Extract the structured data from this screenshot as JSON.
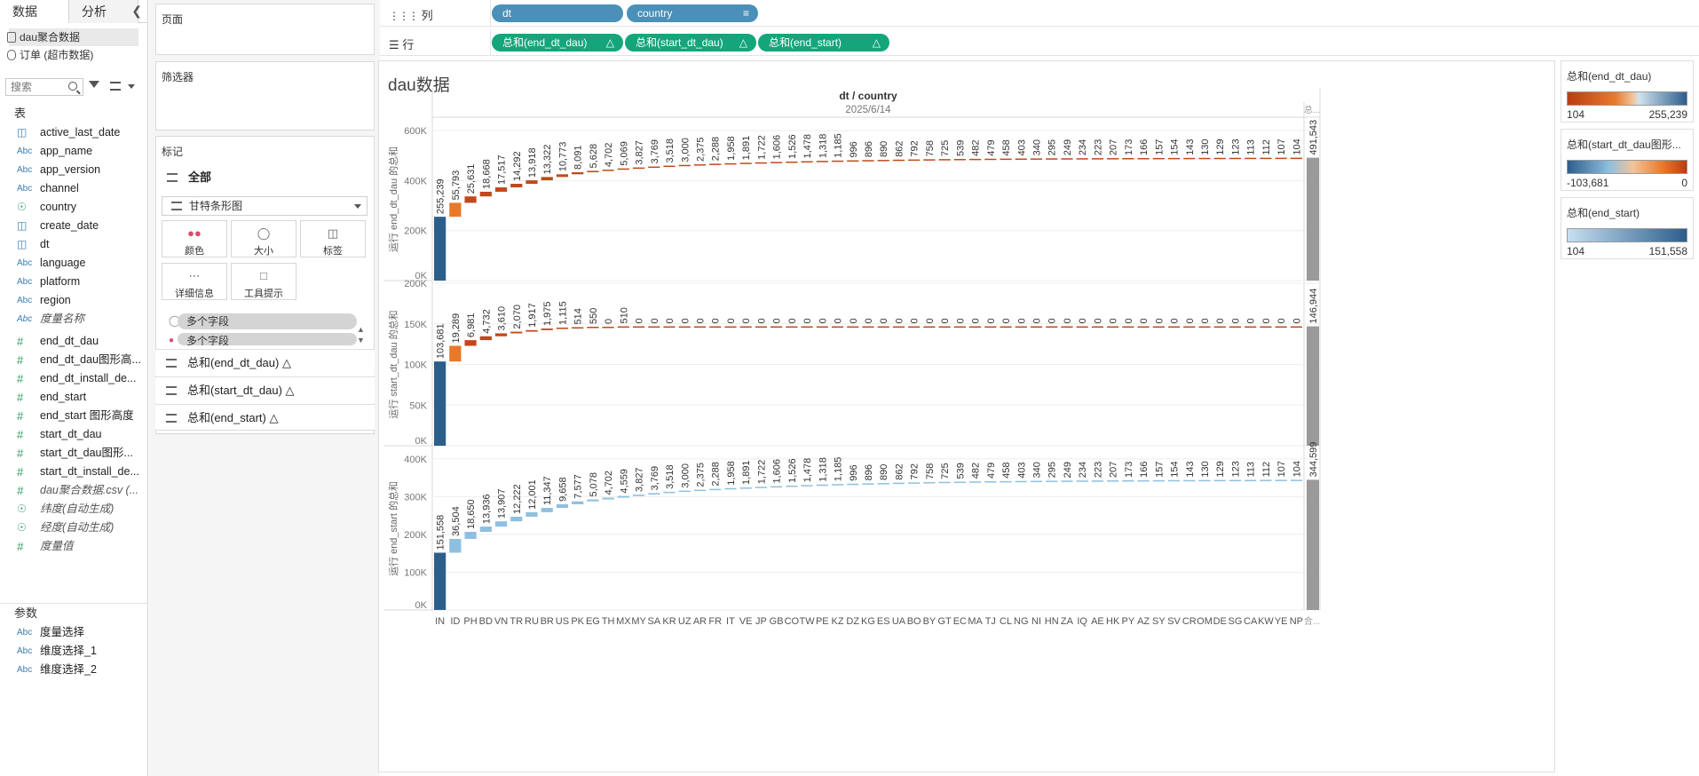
{
  "datapane": {
    "tabs": [
      "数据",
      "分析"
    ],
    "datasources": [
      "dau聚合数据",
      "订单 (超市数据)"
    ],
    "search_placeholder": "搜索",
    "tables_heading": "表",
    "fields": [
      {
        "name": "active_last_date",
        "type": "date"
      },
      {
        "name": "app_name",
        "type": "abc"
      },
      {
        "name": "app_version",
        "type": "abc"
      },
      {
        "name": "channel",
        "type": "abc"
      },
      {
        "name": "country",
        "type": "globe"
      },
      {
        "name": "create_date",
        "type": "date"
      },
      {
        "name": "dt",
        "type": "date"
      },
      {
        "name": "language",
        "type": "abc"
      },
      {
        "name": "platform",
        "type": "abc"
      },
      {
        "name": "region",
        "type": "abc"
      },
      {
        "name": "度量名称",
        "type": "abc",
        "italic": true
      },
      {
        "name": "end_dt_dau",
        "type": "num"
      },
      {
        "name": "end_dt_dau图形高...",
        "type": "num"
      },
      {
        "name": "end_dt_install_de...",
        "type": "num"
      },
      {
        "name": "end_start",
        "type": "num"
      },
      {
        "name": "end_start 图形高度",
        "type": "num"
      },
      {
        "name": "start_dt_dau",
        "type": "num"
      },
      {
        "name": "start_dt_dau图形...",
        "type": "num"
      },
      {
        "name": "start_dt_install_de...",
        "type": "num"
      },
      {
        "name": "dau聚合数据.csv (...",
        "type": "num",
        "italic": true
      },
      {
        "name": "纬度(自动生成)",
        "type": "globe",
        "italic": true
      },
      {
        "name": "经度(自动生成)",
        "type": "globe",
        "italic": true
      },
      {
        "name": "度量值",
        "type": "num",
        "italic": true
      }
    ],
    "params_heading": "参数",
    "params": [
      "度量选择",
      "维度选择_1",
      "维度选择_2"
    ]
  },
  "cards": {
    "pages": "页面",
    "filters": "筛选器",
    "marks": "标记",
    "marks_all": "全部",
    "mark_type": "甘特条形图",
    "mark_buttons": [
      "颜色",
      "大小",
      "标签",
      "详细信息",
      "工具提示"
    ],
    "multi_fields": [
      "多个字段",
      "多个字段"
    ],
    "measure_pills": [
      "总和(end_dt_dau) △",
      "总和(start_dt_dau) △",
      "总和(end_start) △"
    ]
  },
  "shelves": {
    "columns_label": "列",
    "rows_label": "行",
    "columns": [
      "dt",
      "country"
    ],
    "rows": [
      "总和(end_dt_dau)",
      "总和(start_dt_dau)",
      "总和(end_start)"
    ],
    "delta": "△"
  },
  "view": {
    "title": "dau数据",
    "header_top": "dt / country",
    "date_header": "2025/6/14",
    "total_header": "总..."
  },
  "legends": [
    {
      "title": "总和(end_dt_dau)",
      "min": "104",
      "max": "255,239"
    },
    {
      "title": "总和(start_dt_dau图形...",
      "min": "-103,681",
      "max": "0"
    },
    {
      "title": "总和(end_start)",
      "min": "104",
      "max": "151,558"
    }
  ],
  "colors": {
    "pill_blue": "#4a90b8",
    "pill_green": "#14a67a",
    "bar_dark_blue": "#2c5e8c",
    "bar_orange_1": "#e8782a",
    "bar_orange_2": "#c0491b",
    "bar_light_blue": "#8fbfe0",
    "total_gray": "#9a9a9a"
  },
  "chart_data": {
    "type": "bar",
    "subtype": "waterfall-gantt",
    "categories": [
      "IN",
      "ID",
      "PH",
      "BD",
      "VN",
      "TR",
      "RU",
      "BR",
      "US",
      "PK",
      "EG",
      "TH",
      "MX",
      "MY",
      "SA",
      "KR",
      "UZ",
      "AR",
      "FR",
      "IT",
      "VE",
      "JP",
      "GB",
      "CO",
      "TW",
      "PE",
      "KZ",
      "DZ",
      "KG",
      "ES",
      "UA",
      "BO",
      "BY",
      "GT",
      "EC",
      "MA",
      "TJ",
      "CL",
      "NG",
      "NI",
      "HN",
      "ZA",
      "IQ",
      "AE",
      "HK",
      "PY",
      "AZ",
      "SY",
      "SV",
      "CR",
      "OM",
      "DE",
      "SG",
      "CA",
      "KW",
      "YE",
      "NP"
    ],
    "total_label": "合...",
    "panels": [
      {
        "ylabel": "运行 end_dt_dau 的总和",
        "ylim": [
          0,
          650000
        ],
        "ticks": [
          "0K",
          "200K",
          "400K",
          "600K"
        ],
        "tick_values": [
          0,
          200000,
          400000,
          600000
        ],
        "values": [
          255239,
          55793,
          25631,
          18668,
          17517,
          14292,
          13918,
          13322,
          10773,
          8091,
          5628,
          4702,
          5069,
          3827,
          3769,
          3518,
          3000,
          2375,
          2288,
          1958,
          1891,
          1722,
          1606,
          1526,
          1478,
          1318,
          1185,
          996,
          896,
          890,
          862,
          792,
          758,
          725,
          539,
          482,
          479,
          458,
          403,
          340,
          295,
          249,
          234,
          223,
          207,
          173,
          166,
          157,
          154,
          143,
          130,
          129,
          123,
          113,
          112,
          107,
          104
        ],
        "labels": [
          "255,239",
          "55,793",
          "25,631",
          "18,668",
          "17,517",
          "14,292",
          "13,918",
          "13,322",
          "10,773",
          "8,091",
          "5,628",
          "4,702",
          "5,069",
          "3,827",
          "3,769",
          "3,518",
          "3,000",
          "2,375",
          "2,288",
          "1,958",
          "1,891",
          "1,722",
          "1,606",
          "1,526",
          "1,478",
          "1,318",
          "1,185",
          "996",
          "896",
          "890",
          "862",
          "792",
          "758",
          "725",
          "539",
          "482",
          "479",
          "458",
          "403",
          "340",
          "295",
          "249",
          "234",
          "223",
          "207",
          "173",
          "166",
          "157",
          "154",
          "143",
          "130",
          "129",
          "123",
          "113",
          "112",
          "107",
          "104"
        ],
        "total": 491543,
        "total_label": "491,543",
        "palette": "orange"
      },
      {
        "ylabel": "运行 start_dt_dau 的总和",
        "ylim": [
          0,
          200000
        ],
        "ticks": [
          "0K",
          "50K",
          "100K",
          "150K",
          "200K"
        ],
        "tick_values": [
          0,
          50000,
          100000,
          150000,
          200000
        ],
        "values": [
          103681,
          19289,
          6981,
          4732,
          3610,
          2070,
          1917,
          1975,
          1115,
          514,
          550,
          0,
          510,
          0,
          0,
          0,
          0,
          0,
          0,
          0,
          0,
          0,
          0,
          0,
          0,
          0,
          0,
          0,
          0,
          0,
          0,
          0,
          0,
          0,
          0,
          0,
          0,
          0,
          0,
          0,
          0,
          0,
          0,
          0,
          0,
          0,
          0,
          0,
          0,
          0,
          0,
          0,
          0,
          0,
          0,
          0,
          0
        ],
        "labels": [
          "103,681",
          "19,289",
          "6,981",
          "4,732",
          "3,610",
          "2,070",
          "1,917",
          "1,975",
          "1,115",
          "514",
          "550",
          "0",
          "510",
          "0",
          "0",
          "0",
          "0",
          "0",
          "0",
          "0",
          "0",
          "0",
          "0",
          "0",
          "0",
          "0",
          "0",
          "0",
          "0",
          "0",
          "0",
          "0",
          "0",
          "0",
          "0",
          "0",
          "0",
          "0",
          "0",
          "0",
          "0",
          "0",
          "0",
          "0",
          "0",
          "0",
          "0",
          "0",
          "0",
          "0",
          "0",
          "0",
          "0",
          "0",
          "0",
          "0",
          "0"
        ],
        "total": 146944,
        "total_label": "146,944",
        "palette": "orange"
      },
      {
        "ylabel": "运行 end_start 的总和",
        "ylim": [
          0,
          430000
        ],
        "ticks": [
          "0K",
          "100K",
          "200K",
          "300K",
          "400K"
        ],
        "tick_values": [
          0,
          100000,
          200000,
          300000,
          400000
        ],
        "values": [
          151558,
          36504,
          18650,
          13936,
          13907,
          12222,
          12001,
          11347,
          9658,
          7577,
          5078,
          4702,
          4559,
          3827,
          3769,
          3518,
          3000,
          2375,
          2288,
          1958,
          1891,
          1722,
          1606,
          1526,
          1478,
          1318,
          1185,
          996,
          896,
          890,
          862,
          792,
          758,
          725,
          539,
          482,
          479,
          458,
          403,
          340,
          295,
          249,
          234,
          223,
          207,
          173,
          166,
          157,
          154,
          143,
          130,
          129,
          123,
          113,
          112,
          107,
          104
        ],
        "labels": [
          "151,558",
          "36,504",
          "18,650",
          "13,936",
          "13,907",
          "12,222",
          "12,001",
          "11,347",
          "9,658",
          "7,577",
          "5,078",
          "4,702",
          "4,559",
          "3,827",
          "3,769",
          "3,518",
          "3,000",
          "2,375",
          "2,288",
          "1,958",
          "1,891",
          "1,722",
          "1,606",
          "1,526",
          "1,478",
          "1,318",
          "1,185",
          "996",
          "896",
          "890",
          "862",
          "792",
          "758",
          "725",
          "539",
          "482",
          "479",
          "458",
          "403",
          "340",
          "295",
          "249",
          "234",
          "223",
          "207",
          "173",
          "166",
          "157",
          "154",
          "143",
          "130",
          "129",
          "123",
          "113",
          "112",
          "107",
          "104"
        ],
        "total": 344599,
        "total_label": "344,599",
        "palette": "blue"
      }
    ]
  }
}
